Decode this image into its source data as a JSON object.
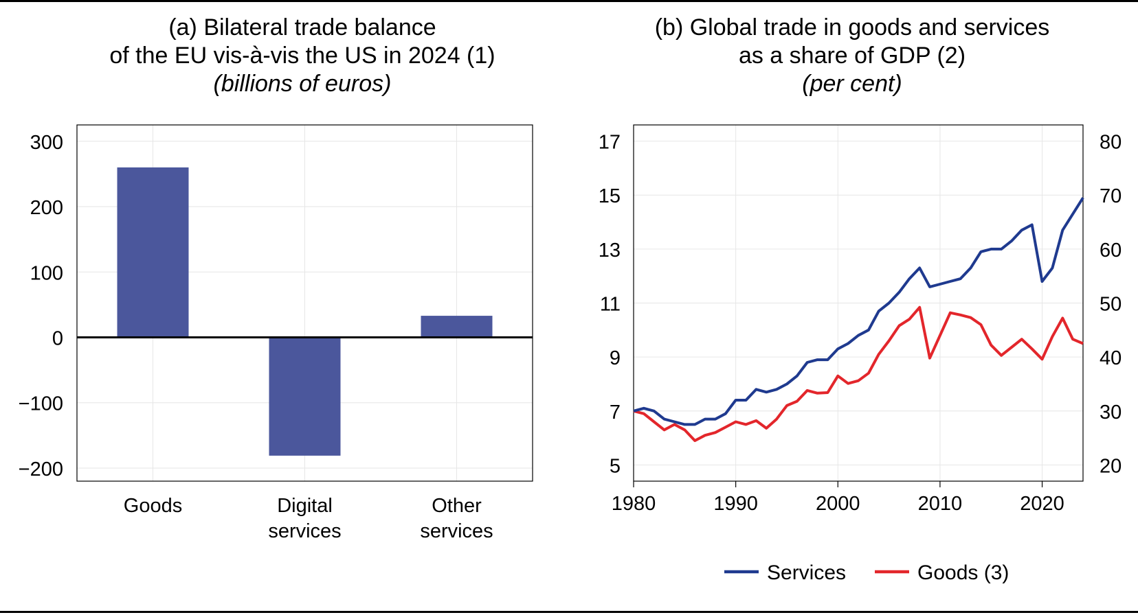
{
  "panel_a": {
    "title_line1": "(a) Bilateral trade balance",
    "title_line2": "of the EU vis-à-vis the US in 2024 (1)",
    "unit": "(billions of euros)"
  },
  "panel_b": {
    "title_line1": "(b) Global trade in goods and services",
    "title_line2": "as a share of GDP (2)",
    "unit": "(per cent)"
  },
  "colors": {
    "bar": "#4b579c",
    "services": "#1f3a8f",
    "goods": "#e3262b",
    "grid": "#e6e6e6",
    "axis": "#000000"
  },
  "chart_data": [
    {
      "type": "bar",
      "title": "(a) Bilateral trade balance of the EU vis-à-vis the US in 2024 (1)",
      "ylabel": "(billions of euros)",
      "categories": [
        [
          "Goods"
        ],
        [
          "Digital",
          "services"
        ],
        [
          "Other",
          "services"
        ]
      ],
      "values": [
        260,
        -181,
        33
      ],
      "ylim": [
        -220,
        325
      ],
      "yticks": [
        300,
        200,
        100,
        0,
        -100,
        -200
      ],
      "ytick_labels": [
        "300",
        "200",
        "100",
        "0",
        "−100",
        "−200"
      ],
      "grid": true,
      "legend": "none"
    },
    {
      "type": "line",
      "title": "(b) Global trade in goods and services as a share of GDP (2)",
      "ylabel": "(per cent)",
      "xlim": [
        1980,
        2024
      ],
      "xticks": [
        1980,
        1990,
        2000,
        2010,
        2020
      ],
      "ylim_left": [
        4.4,
        17.6
      ],
      "yticks_left": [
        5,
        7,
        9,
        11,
        13,
        15,
        17
      ],
      "ylim_right": [
        17,
        83
      ],
      "yticks_right": [
        20,
        30,
        40,
        50,
        60,
        70,
        80
      ],
      "grid": true,
      "legend": "bottom-center",
      "x": [
        1980,
        1981,
        1982,
        1983,
        1984,
        1985,
        1986,
        1987,
        1988,
        1989,
        1990,
        1991,
        1992,
        1993,
        1994,
        1995,
        1996,
        1997,
        1998,
        1999,
        2000,
        2001,
        2002,
        2003,
        2004,
        2005,
        2006,
        2007,
        2008,
        2009,
        2010,
        2011,
        2012,
        2013,
        2014,
        2015,
        2016,
        2017,
        2018,
        2019,
        2020,
        2021,
        2022,
        2023,
        2024
      ],
      "series": [
        {
          "name": "Services",
          "axis": "left",
          "values": [
            7.0,
            7.1,
            7.0,
            6.7,
            6.6,
            6.5,
            6.5,
            6.7,
            6.7,
            6.9,
            7.4,
            7.4,
            7.8,
            7.7,
            7.8,
            8.0,
            8.3,
            8.8,
            8.9,
            8.9,
            9.3,
            9.5,
            9.8,
            10.0,
            10.7,
            11.0,
            11.4,
            11.9,
            12.3,
            11.6,
            11.7,
            11.8,
            11.9,
            12.3,
            12.9,
            13.0,
            13.0,
            13.3,
            13.7,
            13.9,
            11.8,
            12.3,
            13.7,
            14.3,
            14.9
          ]
        },
        {
          "name": "Goods (3)",
          "axis": "right",
          "values": [
            30,
            29.5,
            28,
            26.5,
            27.5,
            26.5,
            24.5,
            25.5,
            26,
            27,
            28,
            27.5,
            28.2,
            26.8,
            28.5,
            31,
            31.8,
            33.8,
            33.3,
            33.4,
            36.5,
            35.1,
            35.6,
            37,
            40.5,
            43,
            45.8,
            47,
            49.2,
            39.8,
            44,
            48.2,
            47.8,
            47.3,
            46,
            42.2,
            40.3,
            41.8,
            43.3,
            41.5,
            39.6,
            43.8,
            47.2,
            43.3,
            42.5
          ]
        }
      ]
    }
  ]
}
